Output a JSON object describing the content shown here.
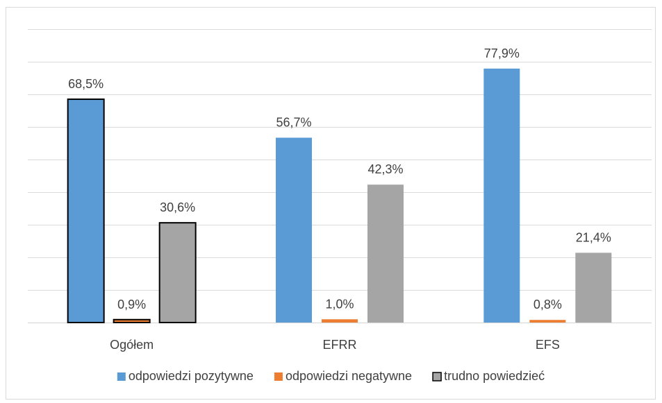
{
  "chart_data": {
    "type": "bar",
    "categories": [
      "Ogółem",
      "EFRR",
      "EFS"
    ],
    "series": [
      {
        "name": "odpowiedzi pozytywne",
        "values": [
          68.5,
          56.7,
          77.9
        ],
        "labels": [
          "68,5%",
          "56,7%",
          "77,9%"
        ],
        "color": "#5b9bd5"
      },
      {
        "name": "odpowiedzi negatywne",
        "values": [
          0.9,
          1.0,
          0.8
        ],
        "labels": [
          "0,9%",
          "1,0%",
          "0,8%"
        ],
        "color": "#ed7d31"
      },
      {
        "name": "trudno powiedzieć",
        "values": [
          30.6,
          42.3,
          21.4
        ],
        "labels": [
          "30,6%",
          "42,3%",
          "21,4%"
        ],
        "color": "#a5a5a5"
      }
    ],
    "highlighted_category": "Ogółem",
    "ylim": [
      0,
      90
    ],
    "gridlines": [
      0,
      10,
      20,
      30,
      40,
      50,
      60,
      70,
      80,
      90
    ],
    "grid": true,
    "y_axis_labels_visible": false,
    "legend_position": "bottom"
  }
}
